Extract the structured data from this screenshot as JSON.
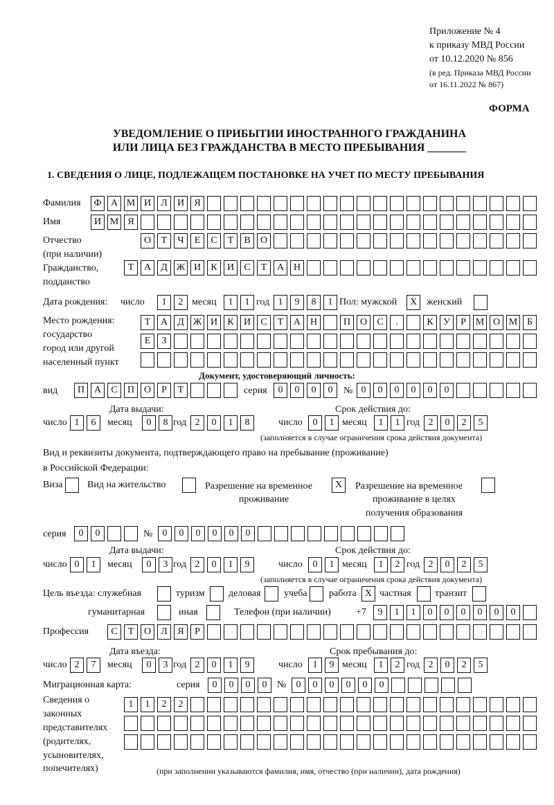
{
  "header": {
    "appendix": "Приложение № 4",
    "order": "к приказу МВД России",
    "order_date": "от 10.12.2020 № 856",
    "edit1": "(в ред. Приказа МВД России",
    "edit2": "от 16.11.2022 № 867)",
    "form": "ФОРМА",
    "title1": "УВЕДОМЛЕНИЕ О ПРИБЫТИИ ИНОСТРАННОГО ГРАЖДАНИНА",
    "title2": "ИЛИ ЛИЦА БЕЗ ГРАЖДАНСТВА В МЕСТО ПРЕБЫВАНИЯ _______",
    "section1": "1. СВЕДЕНИЯ О ЛИЦЕ, ПОДЛЕЖАЩЕМ ПОСТАНОВКЕ НА УЧЕТ ПО МЕСТУ ПРЕБЫВАНИЯ"
  },
  "labels": {
    "surname": "Фамилия",
    "name": "Имя",
    "patronymic": "Отчество",
    "patronymic2": "(при наличии)",
    "citizenship": "Гражданство,",
    "citizenship2": "подданство",
    "birth_date": "Дата рождения:",
    "day": "число",
    "month": "месяц",
    "year": "год",
    "sex": "Пол: мужской",
    "female": "женский",
    "birth_place1": "Место рождения:",
    "birth_place2": "государство",
    "birth_place3": "город или другой",
    "birth_place4": "населенный пункт",
    "id_doc": "Документ, удостоверяющий личность:",
    "kind": "вид",
    "series": "серия",
    "number": "№",
    "issue_date": "Дата выдачи:",
    "valid_until": "Срок действия до:",
    "validity_note": "(заполняется в случае ограничения срока действия документа)",
    "stay_doc1": "Вид и реквизиты документа, подтверждающего право на пребывание (проживание)",
    "stay_doc2": "в Российской Федерации:",
    "visa": "Виза",
    "residence": "Вид на жительство",
    "temp1": "Разрешение на временное",
    "temp2": "проживание",
    "edu1": "Разрешение на временное",
    "edu2": "проживание в целях",
    "edu3": "получения образования",
    "purpose": "Цель въезда: служебная",
    "tourism": "туризм",
    "business": "деловая",
    "study": "учеба",
    "work": "работа",
    "private": "частная",
    "transit": "транзит",
    "humanitarian": "гуманитарная",
    "other": "иная",
    "phone": "Телефон (при наличии)",
    "phone_prefix": "+7",
    "profession": "Профессия",
    "entry_date": "Дата въезда:",
    "stay_until": "Срок пребывания до:",
    "migration_card": "Миграционная карта:",
    "reps1": "Сведения о",
    "reps2": "законных",
    "reps3": "представителях",
    "reps4": "(родителях,",
    "reps5": "усыновителях,",
    "reps6": "попечителях)",
    "reps_note": "(при заполнении указываются фамилия, имя, отчество (при наличии), дата рождения)"
  },
  "person": {
    "surname": [
      "Ф",
      "А",
      "М",
      "И",
      "Л",
      "И",
      "Я"
    ],
    "name": [
      "И",
      "М",
      "Я"
    ],
    "patronymic": [
      "О",
      "Т",
      "Ч",
      "Е",
      "С",
      "Т",
      "В",
      "О"
    ],
    "citizenship": [
      "Т",
      "А",
      "Д",
      "Ж",
      "И",
      "К",
      "И",
      "С",
      "Т",
      "А",
      "Н"
    ],
    "birth_day": [
      "1",
      "2"
    ],
    "birth_month": [
      "1",
      "1"
    ],
    "birth_year": [
      "1",
      "9",
      "8",
      "1"
    ],
    "male": "X",
    "female": "",
    "birth_place_1": [
      "Т",
      "А",
      "Д",
      "Ж",
      "И",
      "К",
      "И",
      "С",
      "Т",
      "А",
      "Н",
      "",
      "П",
      "О",
      "С",
      ".",
      "",
      "К",
      "У",
      "Р",
      "М",
      "О",
      "М",
      "Б"
    ],
    "birth_place_2": [
      "Е",
      "З"
    ],
    "birth_place_3": []
  },
  "id_document": {
    "kind": [
      "П",
      "А",
      "С",
      "П",
      "О",
      "Р",
      "Т"
    ],
    "series": [
      "0",
      "0",
      "0",
      "0"
    ],
    "number": [
      "0",
      "0",
      "0",
      "0",
      "0",
      "0"
    ],
    "issue_day": [
      "1",
      "6"
    ],
    "issue_month": [
      "0",
      "8"
    ],
    "issue_year": [
      "2",
      "0",
      "1",
      "8"
    ],
    "valid_day": [
      "0",
      "1"
    ],
    "valid_month": [
      "1",
      "1"
    ],
    "valid_year": [
      "2",
      "0",
      "2",
      "5"
    ]
  },
  "stay_document": {
    "visa": "",
    "residence": "",
    "temp_residence": "X",
    "edu_residence": "",
    "series": [
      "0",
      "0"
    ],
    "number": [
      "0",
      "0",
      "0",
      "0",
      "0",
      "0"
    ],
    "issue_day": [
      "0",
      "1"
    ],
    "issue_month": [
      "0",
      "3"
    ],
    "issue_year": [
      "2",
      "0",
      "1",
      "9"
    ],
    "valid_day": [
      "0",
      "1"
    ],
    "valid_month": [
      "1",
      "2"
    ],
    "valid_year": [
      "2",
      "0",
      "2",
      "5"
    ]
  },
  "purpose": {
    "service": "",
    "tourism": "",
    "business": "",
    "study": "",
    "work": "X",
    "private": "",
    "transit": "",
    "humanitarian": "",
    "other": ""
  },
  "phone": [
    "9",
    "1",
    "1",
    "0",
    "0",
    "0",
    "0",
    "0",
    "0"
  ],
  "profession": [
    "С",
    "Т",
    "О",
    "Л",
    "Я",
    "Р"
  ],
  "entry": {
    "day": [
      "2",
      "7"
    ],
    "month": [
      "0",
      "3"
    ],
    "year": [
      "2",
      "0",
      "1",
      "9"
    ]
  },
  "stay_until": {
    "day": [
      "1",
      "9"
    ],
    "month": [
      "1",
      "2"
    ],
    "year": [
      "2",
      "0",
      "2",
      "5"
    ]
  },
  "migration_card": {
    "series": [
      "0",
      "0",
      "0",
      "0"
    ],
    "number": [
      "0",
      "0",
      "0",
      "0",
      "0",
      "0"
    ]
  },
  "representatives": {
    "row1": [
      "1",
      "1",
      "2",
      "2"
    ],
    "row2": [],
    "row3": []
  }
}
